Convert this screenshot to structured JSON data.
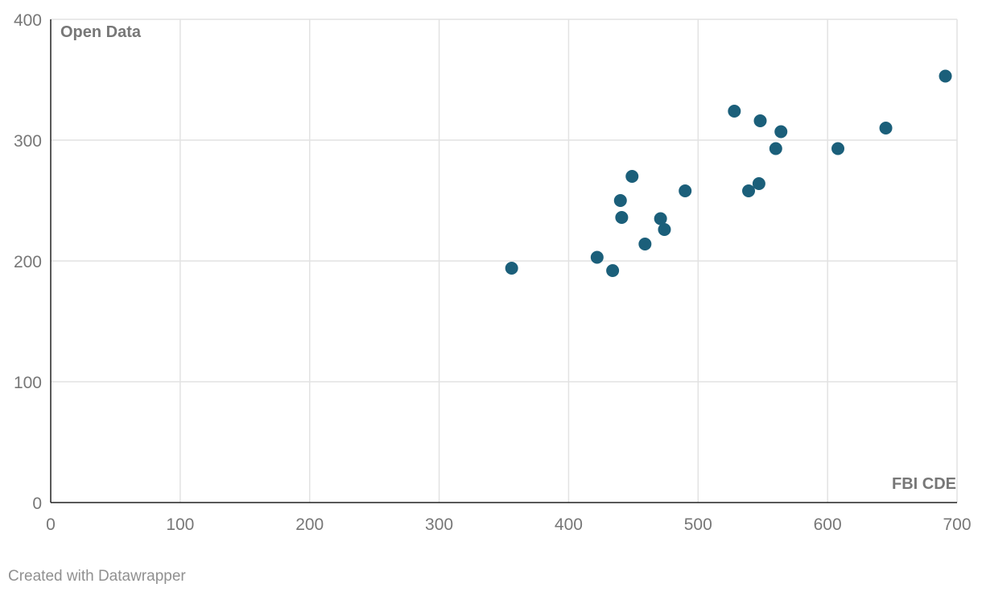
{
  "chart_data": {
    "type": "scatter",
    "xlabel": "FBI CDE",
    "ylabel": "Open Data",
    "xlim": [
      0,
      700
    ],
    "ylim": [
      0,
      400
    ],
    "x_ticks": [
      0,
      100,
      200,
      300,
      400,
      500,
      600,
      700
    ],
    "y_ticks": [
      0,
      100,
      200,
      300,
      400
    ],
    "grid": true,
    "point_color": "#1b5f7a",
    "points": [
      {
        "x": 356,
        "y": 194
      },
      {
        "x": 422,
        "y": 203
      },
      {
        "x": 434,
        "y": 192
      },
      {
        "x": 440,
        "y": 250
      },
      {
        "x": 441,
        "y": 236
      },
      {
        "x": 449,
        "y": 270
      },
      {
        "x": 459,
        "y": 214
      },
      {
        "x": 471,
        "y": 235
      },
      {
        "x": 474,
        "y": 226
      },
      {
        "x": 490,
        "y": 258
      },
      {
        "x": 528,
        "y": 324
      },
      {
        "x": 539,
        "y": 258
      },
      {
        "x": 547,
        "y": 264
      },
      {
        "x": 548,
        "y": 316
      },
      {
        "x": 560,
        "y": 293
      },
      {
        "x": 564,
        "y": 307
      },
      {
        "x": 608,
        "y": 293
      },
      {
        "x": 645,
        "y": 310
      },
      {
        "x": 691,
        "y": 353
      }
    ]
  },
  "footer": {
    "credit": "Created with Datawrapper"
  }
}
